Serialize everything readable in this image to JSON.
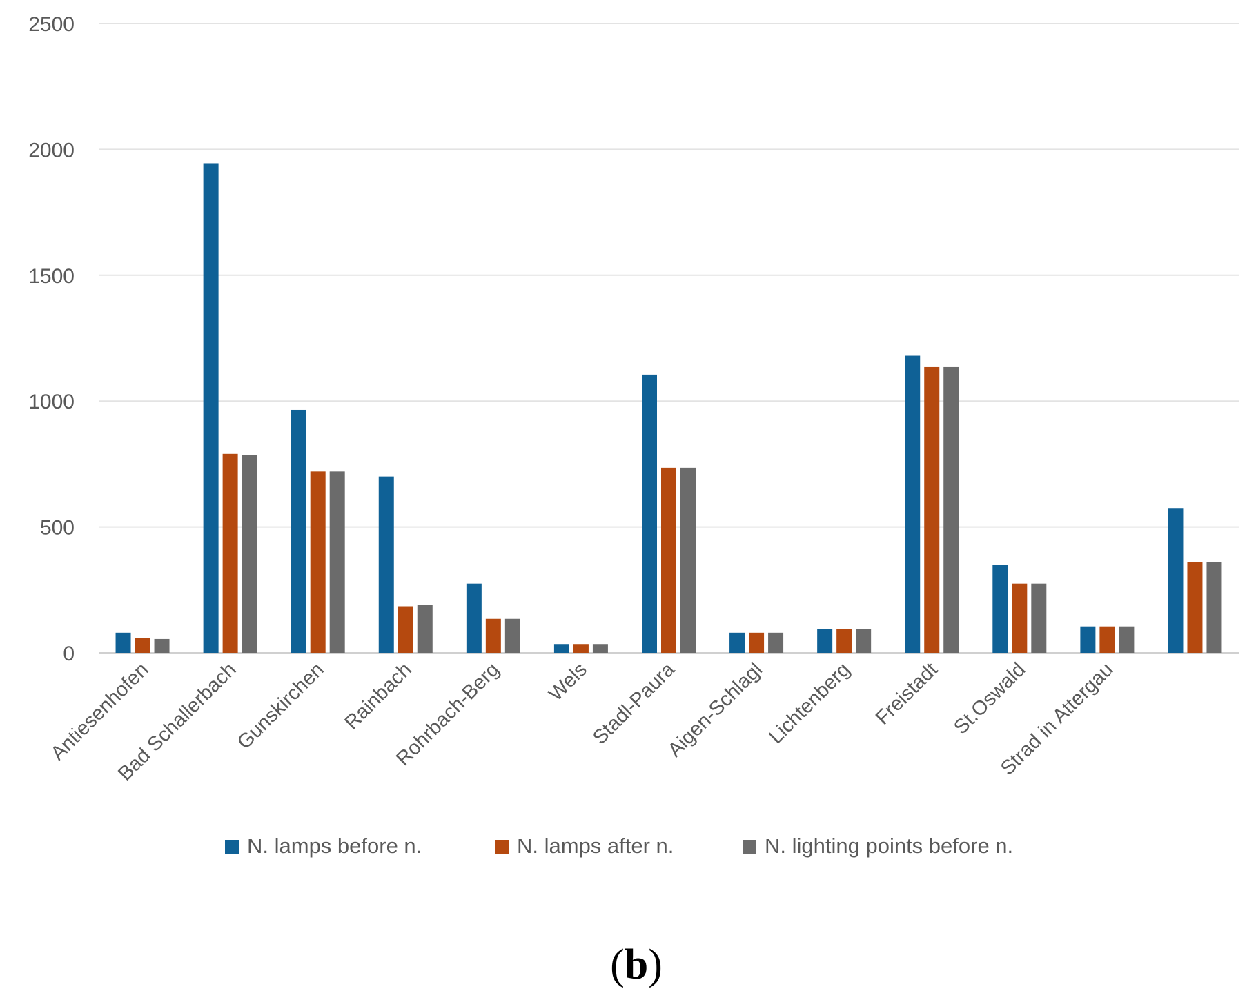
{
  "chart_data": {
    "type": "bar",
    "title": "",
    "xlabel": "",
    "ylabel": "",
    "ylim": [
      0,
      2500
    ],
    "yticks": [
      0,
      500,
      1000,
      1500,
      2000,
      2500
    ],
    "grid": true,
    "legend_position": "bottom",
    "categories": [
      "Antiesenhofen",
      "Bad Schallerbach",
      "Gunskirchen",
      "Rainbach",
      "Rohrbach-Berg",
      "Wels",
      "Stadl-Paura",
      "Aigen-Schlagl",
      "Lichtenberg",
      "Freistadt",
      "St.Oswald",
      "Strad in Attergau",
      ""
    ],
    "series": [
      {
        "name": "N. lamps before n.",
        "color": "#0f6196",
        "values": [
          80,
          1945,
          965,
          700,
          275,
          35,
          1105,
          80,
          95,
          1180,
          350,
          105,
          575
        ]
      },
      {
        "name": "N. lamps after n.",
        "color": "#b5490f",
        "values": [
          60,
          790,
          720,
          185,
          135,
          35,
          735,
          80,
          95,
          1135,
          275,
          105,
          360
        ]
      },
      {
        "name": "N. lighting points before n.",
        "color": "#6b6b6b",
        "values": [
          55,
          785,
          720,
          190,
          135,
          35,
          735,
          80,
          95,
          1135,
          275,
          105,
          360
        ]
      }
    ]
  },
  "caption": {
    "open": "(",
    "letter": "b",
    "close": ")"
  }
}
